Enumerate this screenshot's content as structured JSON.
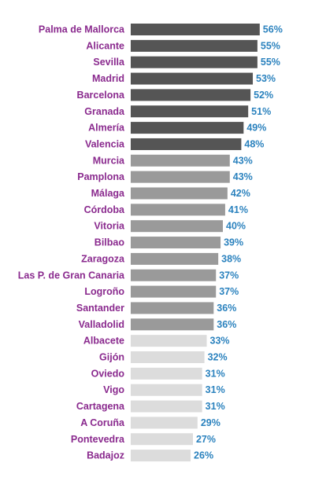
{
  "chart_data": {
    "type": "bar",
    "orientation": "horizontal",
    "unit": "%",
    "categories": [
      "Palma de Mallorca",
      "Alicante",
      "Sevilla",
      "Madrid",
      "Barcelona",
      "Granada",
      "Almería",
      "Valencia",
      "Murcia",
      "Pamplona",
      "Málaga",
      "Córdoba",
      "Vitoria",
      "Bilbao",
      "Zaragoza",
      "Las P. de Gran Canaria",
      "Logroño",
      "Santander",
      "Valladolid",
      "Albacete",
      "Gijón",
      "Oviedo",
      "Vigo",
      "Cartagena",
      "A Coruña",
      "Pontevedra",
      "Badajoz"
    ],
    "values": [
      56,
      55,
      55,
      53,
      52,
      51,
      49,
      48,
      43,
      43,
      42,
      41,
      40,
      39,
      38,
      37,
      37,
      36,
      36,
      33,
      32,
      31,
      31,
      31,
      29,
      27,
      26
    ],
    "value_labels": [
      "56%",
      "55%",
      "55%",
      "53%",
      "52%",
      "51%",
      "49%",
      "48%",
      "43%",
      "43%",
      "42%",
      "41%",
      "40%",
      "39%",
      "38%",
      "37%",
      "37%",
      "36%",
      "36%",
      "33%",
      "32%",
      "31%",
      "31%",
      "31%",
      "29%",
      "27%",
      "26%"
    ],
    "groups": [
      "dark",
      "dark",
      "dark",
      "dark",
      "dark",
      "dark",
      "dark",
      "dark",
      "mid",
      "mid",
      "mid",
      "mid",
      "mid",
      "mid",
      "mid",
      "mid",
      "mid",
      "mid",
      "mid",
      "light",
      "light",
      "light",
      "light",
      "light",
      "light",
      "light",
      "light"
    ],
    "title": "",
    "xlabel": "",
    "ylabel": "",
    "grid": false,
    "legend": "none"
  },
  "colors": {
    "dark": "#555555",
    "mid": "#9a9a9a",
    "light": "#dcdcdc",
    "category_text": "#8a2a8e",
    "value_text": "#2b82be"
  }
}
